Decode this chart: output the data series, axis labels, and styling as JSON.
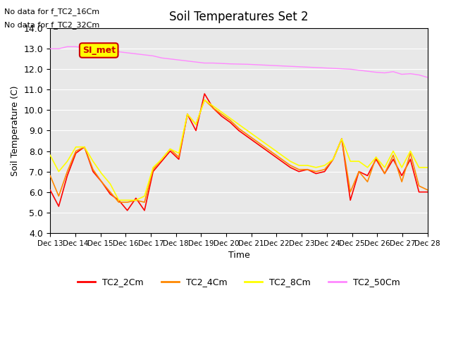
{
  "title": "Soil Temperatures Set 2",
  "xlabel": "Time",
  "ylabel": "Soil Temperature (C)",
  "ylim": [
    4.0,
    14.0
  ],
  "yticks": [
    4.0,
    5.0,
    6.0,
    7.0,
    8.0,
    9.0,
    10.0,
    11.0,
    12.0,
    13.0,
    14.0
  ],
  "annotations": [
    "No data for f_TC2_16Cm",
    "No data for f_TC2_32Cm"
  ],
  "legend_box_label": "SI_met",
  "legend_box_color": "#ffff00",
  "legend_box_border": "#cc0000",
  "background_color": "#e8e8e8",
  "line_colors": {
    "TC2_2Cm": "#ff0000",
    "TC2_4Cm": "#ff8800",
    "TC2_8Cm": "#ffff00",
    "TC2_50Cm": "#ff88ff"
  },
  "xtick_labels": [
    "Dec 13",
    "Dec 14",
    "Dec 15",
    "Dec 16",
    "Dec 17",
    "Dec 18",
    "Dec 19",
    "Dec 20",
    "Dec 21",
    "Dec 22",
    "Dec 23",
    "Dec 24",
    "Dec 25",
    "Dec 26",
    "Dec 27",
    "Dec 28"
  ],
  "TC2_2Cm": [
    6.1,
    5.3,
    6.8,
    7.9,
    8.2,
    7.0,
    6.5,
    5.9,
    5.6,
    5.1,
    5.7,
    5.1,
    7.0,
    7.5,
    8.0,
    7.6,
    9.8,
    9.0,
    10.8,
    10.1,
    9.7,
    9.4,
    9.0,
    8.7,
    8.4,
    8.1,
    7.8,
    7.5,
    7.2,
    7.0,
    7.1,
    6.9,
    7.0,
    7.6,
    8.6,
    5.6,
    7.0,
    6.8,
    7.6,
    6.9,
    7.6,
    6.8,
    7.6,
    6.0,
    6.0
  ],
  "TC2_4Cm": [
    6.8,
    5.8,
    7.0,
    8.0,
    8.2,
    7.1,
    6.5,
    6.0,
    5.5,
    5.5,
    5.6,
    5.5,
    7.1,
    7.6,
    8.1,
    7.7,
    9.8,
    9.3,
    10.5,
    10.1,
    9.8,
    9.5,
    9.1,
    8.8,
    8.5,
    8.2,
    7.9,
    7.6,
    7.3,
    7.1,
    7.1,
    7.0,
    7.1,
    7.6,
    8.6,
    6.0,
    7.0,
    6.5,
    7.7,
    6.9,
    7.8,
    6.5,
    7.9,
    6.3,
    6.1
  ],
  "TC2_8Cm": [
    7.8,
    7.0,
    7.5,
    8.2,
    8.2,
    7.5,
    6.9,
    6.4,
    5.6,
    5.6,
    5.6,
    5.8,
    7.2,
    7.6,
    8.1,
    7.9,
    9.8,
    9.3,
    10.5,
    10.2,
    9.9,
    9.6,
    9.3,
    9.0,
    8.7,
    8.4,
    8.1,
    7.8,
    7.5,
    7.3,
    7.3,
    7.2,
    7.3,
    7.6,
    8.6,
    7.5,
    7.5,
    7.2,
    7.7,
    7.2,
    8.0,
    7.2,
    8.0,
    7.2,
    7.2
  ],
  "TC2_50Cm": [
    13.0,
    13.0,
    13.1,
    13.1,
    13.05,
    12.95,
    12.9,
    12.85,
    12.85,
    12.8,
    12.75,
    12.7,
    12.65,
    12.55,
    12.5,
    12.45,
    12.4,
    12.35,
    12.3,
    12.3,
    12.28,
    12.26,
    12.25,
    12.24,
    12.22,
    12.2,
    12.18,
    12.16,
    12.14,
    12.12,
    12.1,
    12.08,
    12.06,
    12.04,
    12.02,
    12.0,
    11.95,
    11.9,
    11.85,
    11.82,
    11.88,
    11.75,
    11.78,
    11.72,
    11.6
  ]
}
